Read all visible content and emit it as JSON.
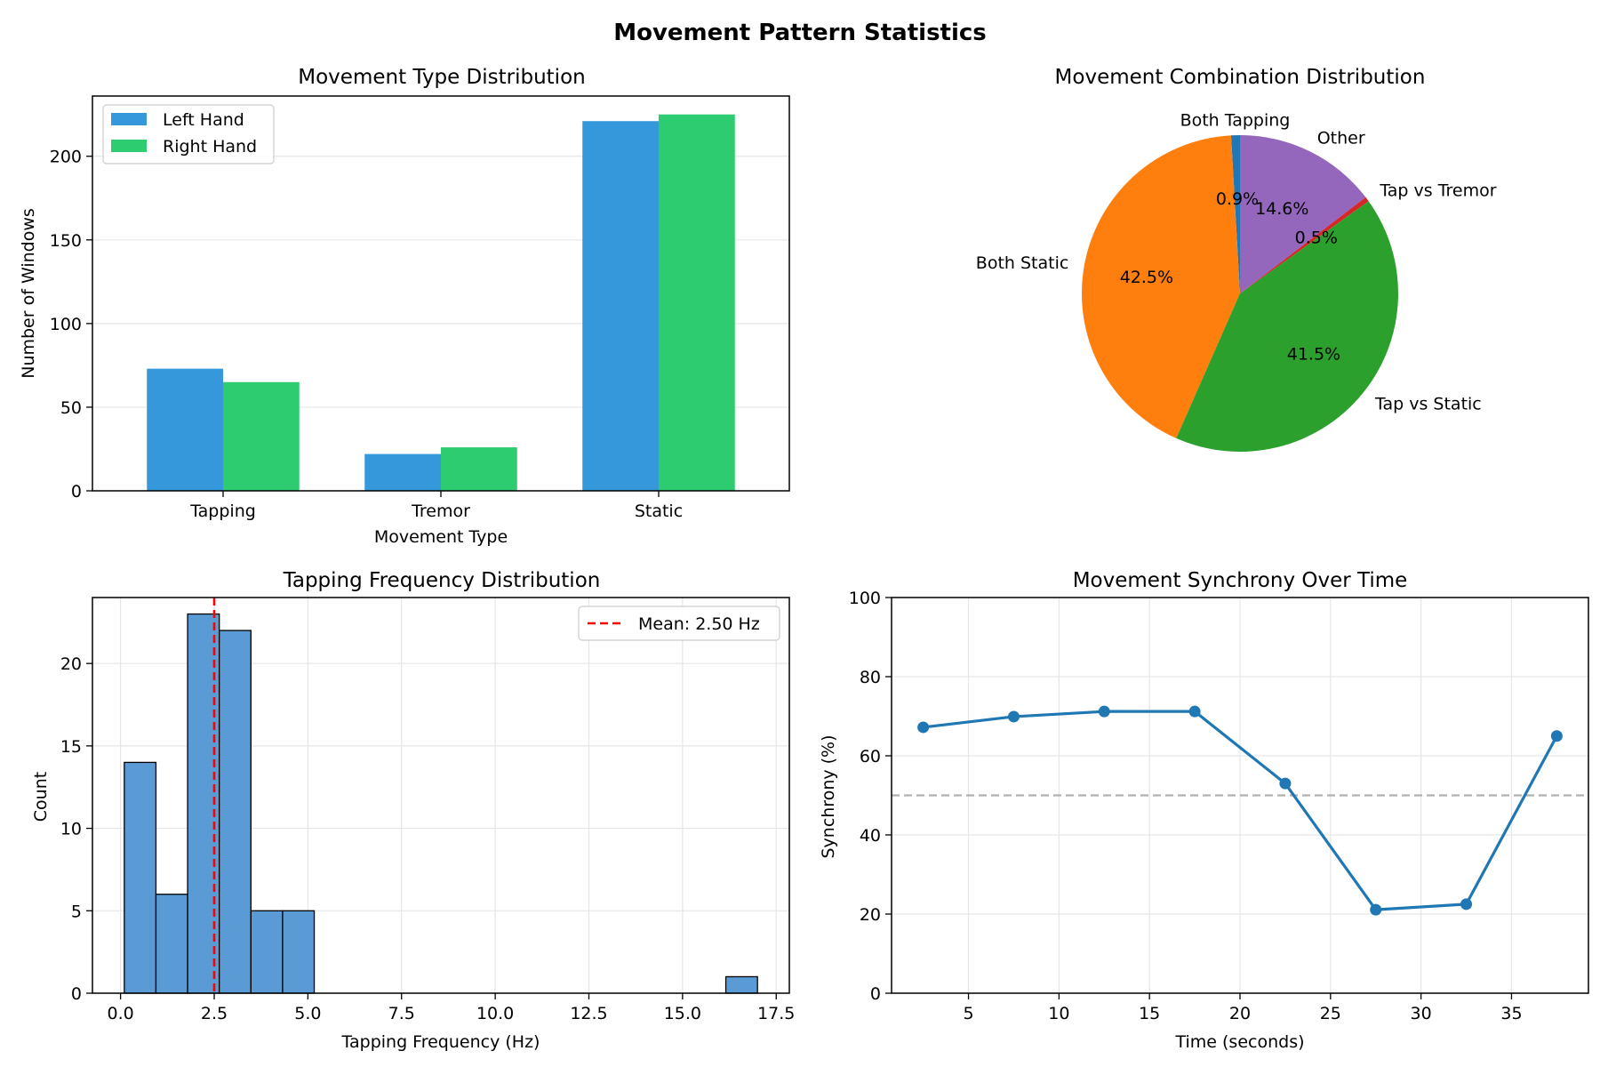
{
  "suptitle": "Movement Pattern Statistics",
  "charts": [
    {
      "type": "bar",
      "title": "Movement Type Distribution",
      "xlabel": "Movement Type",
      "ylabel": "Number of Windows",
      "categories": [
        "Tapping",
        "Tremor",
        "Static"
      ],
      "series": [
        {
          "name": "Left Hand",
          "color": "#3498db",
          "values": [
            73,
            22,
            221
          ]
        },
        {
          "name": "Right Hand",
          "color": "#2ecc71",
          "values": [
            65,
            26,
            225
          ]
        }
      ],
      "ylim": [
        0,
        236
      ],
      "yticks": [
        0,
        50,
        100,
        150,
        200
      ],
      "grid": "y",
      "legend": "top-left"
    },
    {
      "type": "pie",
      "title": "Movement Combination Distribution",
      "start_angle_deg": 90,
      "slices": [
        {
          "label": "Both Tapping",
          "pct_label": "0.9%",
          "value": 0.9,
          "color": "#1f77b4"
        },
        {
          "label": "Both Static",
          "pct_label": "42.5%",
          "value": 42.5,
          "color": "#ff7f0e"
        },
        {
          "label": "Tap vs Static",
          "pct_label": "41.5%",
          "value": 41.5,
          "color": "#2ca02c"
        },
        {
          "label": "Tap vs Tremor",
          "pct_label": "0.5%",
          "value": 0.5,
          "color": "#d62728"
        },
        {
          "label": "Other",
          "pct_label": "14.6%",
          "value": 14.6,
          "color": "#9467bd"
        }
      ]
    },
    {
      "type": "histogram",
      "title": "Tapping Frequency Distribution",
      "xlabel": "Tapping Frequency (Hz)",
      "ylabel": "Count",
      "bin_start": 0.1,
      "bin_width": 0.845,
      "counts": [
        14,
        6,
        23,
        22,
        5,
        5,
        0,
        0,
        0,
        0,
        0,
        0,
        0,
        0,
        0,
        0,
        0,
        0,
        0,
        1
      ],
      "color": "#5b9bd5",
      "xlim": [
        -0.75,
        17.85
      ],
      "ylim": [
        0,
        24
      ],
      "xticks": [
        "0.0",
        "2.5",
        "5.0",
        "7.5",
        "10.0",
        "12.5",
        "15.0",
        "17.5"
      ],
      "yticks": [
        0,
        5,
        10,
        15,
        20
      ],
      "mean_line": {
        "value": 2.5,
        "label": "Mean: 2.50 Hz",
        "color": "#ff0000"
      },
      "grid": "both",
      "legend": "top-right"
    },
    {
      "type": "line",
      "title": "Movement Synchrony Over Time",
      "xlabel": "Time (seconds)",
      "ylabel": "Synchrony (%)",
      "x": [
        2.5,
        7.5,
        12.5,
        17.5,
        22.5,
        27.5,
        32.5,
        37.5
      ],
      "y": [
        67.2,
        69.9,
        71.2,
        71.2,
        53.0,
        21.1,
        22.5,
        65.0
      ],
      "color": "#1f77b4",
      "xlim": [
        0.75,
        39.25
      ],
      "ylim": [
        0,
        100
      ],
      "xticks": [
        5,
        10,
        15,
        20,
        25,
        30,
        35
      ],
      "yticks": [
        0,
        20,
        40,
        60,
        80,
        100
      ],
      "reference_line": {
        "value": 50,
        "color": "#b0b0b0"
      },
      "grid": "both"
    }
  ]
}
